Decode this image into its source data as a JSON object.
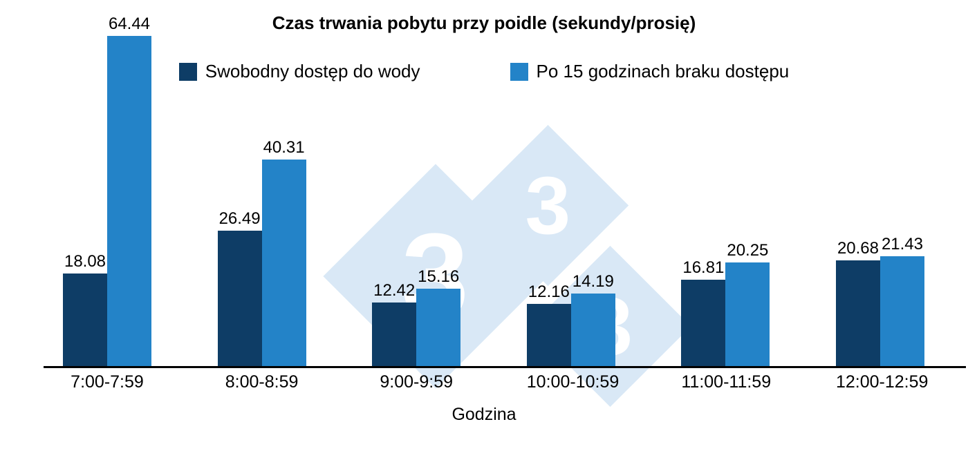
{
  "chart_data": {
    "type": "bar",
    "title": "Czas trwania pobytu przy poidle (sekundy/prosię)",
    "xlabel": "Godzina",
    "ylabel": "",
    "ylim": [
      0,
      66
    ],
    "grid": false,
    "legend_position": "top-center",
    "categories": [
      "7:00-7:59",
      "8:00-8:59",
      "9:00-9:59",
      "10:00-10:59",
      "11:00-11:59",
      "12:00-12:59"
    ],
    "series": [
      {
        "name": "Swobodny dostęp do wody",
        "color": "#0e3d66",
        "values": [
          18.08,
          26.49,
          12.42,
          12.16,
          16.81,
          20.68
        ]
      },
      {
        "name": "Po 15 godzinach braku dostępu",
        "color": "#2383c8",
        "values": [
          64.44,
          40.31,
          15.16,
          14.19,
          20.25,
          21.43
        ]
      }
    ]
  },
  "watermark": {
    "digits": [
      "3",
      "3",
      "3"
    ],
    "color": "#d9e8f6"
  }
}
